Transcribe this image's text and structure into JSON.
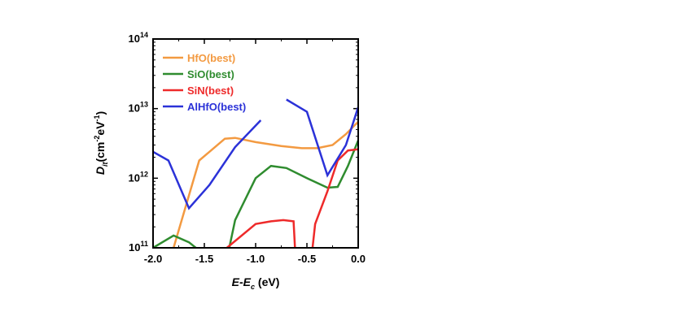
{
  "chart_data": {
    "type": "line",
    "yscale": "log",
    "xlim": [
      -2.0,
      0.0
    ],
    "ylim": [
      100000000000.0,
      100000000000000.0
    ],
    "xticks": [
      -2.0,
      -1.5,
      -1.0,
      -0.5,
      0.0
    ],
    "xtick_labels": [
      "-2.0",
      "-1.5",
      "-1.0",
      "-0.5",
      "0.0"
    ],
    "ytick_exponents": [
      11,
      12,
      13,
      14
    ],
    "ytick_base": "10",
    "xlabel": {
      "E": "E",
      "dash": "-",
      "E2": "E",
      "sub": "c",
      "unit": " (eV)"
    },
    "ylabel": {
      "D": "D",
      "sub": "it",
      "open": "(cm",
      "sup1": "-2",
      "mid": "eV",
      "sup2": "-1",
      "close": ")"
    },
    "grid": false,
    "legend_position": "top-left",
    "series": [
      {
        "name": "HfO(best)",
        "color": "#f39a41",
        "x": [
          -2.0,
          -1.8,
          -1.55,
          -1.3,
          -1.2,
          -1.0,
          -0.75,
          -0.55,
          -0.4,
          -0.25,
          -0.12,
          0.0
        ],
        "y": [
          10000000000.0,
          100000000000.0,
          1800000000000.0,
          3700000000000.0,
          3800000000000.0,
          3300000000000.0,
          2900000000000.0,
          2700000000000.0,
          2700000000000.0,
          3000000000000.0,
          4300000000000.0,
          6500000000000.0
        ]
      },
      {
        "name": "SiO(best)",
        "color": "#2f8c2f",
        "x": [
          -2.0,
          -1.8,
          -1.65,
          -1.5,
          -1.4,
          -1.2,
          -1.0,
          -0.85,
          -0.7,
          -0.5,
          -0.3,
          -0.2,
          -0.1,
          0.0
        ],
        "y": [
          100000000000.0,
          150000000000.0,
          120000000000.0,
          80000000000.0,
          10000000000.0,
          250000000000.0,
          1000000000000.0,
          1500000000000.0,
          1400000000000.0,
          1000000000000.0,
          730000000000.0,
          750000000000.0,
          1500000000000.0,
          3500000000000.0
        ]
      },
      {
        "name": "SiN(best)",
        "color": "#ee2a2a",
        "x": [
          -1.28,
          -1.0,
          -0.85,
          -0.73,
          -0.63,
          -0.58,
          -0.52,
          -0.42,
          -0.3,
          -0.2,
          -0.1,
          0.0
        ],
        "y": [
          100000000000.0,
          220000000000.0,
          240000000000.0,
          250000000000.0,
          240000000000.0,
          10000000000.0,
          10000000000.0,
          220000000000.0,
          650000000000.0,
          1800000000000.0,
          2500000000000.0,
          2600000000000.0
        ]
      },
      {
        "name": "AlHfO(best)",
        "color": "#2b32d8",
        "segments": [
          {
            "x": [
              -2.0,
              -1.85,
              -1.65,
              -1.45,
              -1.2,
              -0.95
            ],
            "y": [
              2400000000000.0,
              1800000000000.0,
              370000000000.0,
              800000000000.0,
              2800000000000.0,
              6800000000000.0
            ]
          },
          {
            "x": [
              -0.7,
              -0.5,
              -0.3,
              -0.12,
              0.0
            ],
            "y": [
              13500000000000.0,
              9000000000000.0,
              1100000000000.0,
              3000000000000.0,
              10500000000000.0
            ]
          }
        ]
      }
    ]
  }
}
